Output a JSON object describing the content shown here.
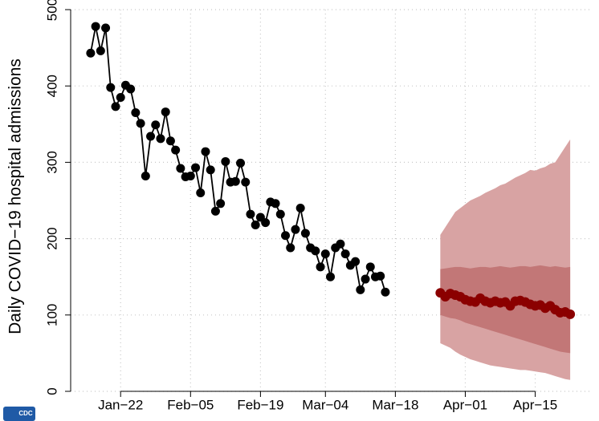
{
  "chart_data": {
    "type": "line",
    "y_label": "Daily COVID−19 hospital admissions",
    "logo_text": "CDC",
    "xlim": [
      "Jan-12",
      "Apr-26"
    ],
    "ylim": [
      0,
      500
    ],
    "yticks": [
      0,
      100,
      200,
      300,
      400,
      500
    ],
    "xticks": [
      {
        "value": "Jan-22",
        "label": "Jan−22"
      },
      {
        "value": "Feb-05",
        "label": "Feb−05"
      },
      {
        "value": "Feb-19",
        "label": "Feb−19"
      },
      {
        "value": "Mar-04",
        "label": "Mar−04"
      },
      {
        "value": "Mar-18",
        "label": "Mar−18"
      },
      {
        "value": "Apr-01",
        "label": "Apr−01"
      },
      {
        "value": "Apr-15",
        "label": "Apr−15"
      }
    ],
    "grid": true,
    "observed": {
      "color": "#000000",
      "start": "Jan-16",
      "values": [
        443,
        478,
        446,
        476,
        398,
        373,
        385,
        401,
        396,
        365,
        351,
        282,
        334,
        349,
        331,
        366,
        328,
        316,
        292,
        281,
        282,
        293,
        260,
        314,
        290,
        236,
        246,
        301,
        274,
        275,
        299,
        274,
        232,
        218,
        228,
        221,
        248,
        246,
        232,
        204,
        188,
        212,
        240,
        207,
        188,
        184,
        163,
        180,
        150,
        188,
        193,
        180,
        165,
        170,
        133,
        147,
        163,
        150,
        151,
        130
      ]
    },
    "forecast": {
      "color": "#8b0000",
      "start": "Mar-27",
      "values": [
        129,
        124,
        128,
        126,
        124,
        120,
        118,
        117,
        122,
        118,
        116,
        118,
        116,
        117,
        112,
        118,
        119,
        117,
        114,
        112,
        113,
        109,
        112,
        107,
        103,
        104,
        101
      ],
      "outer_band": {
        "color": "#d8a3a3",
        "upper": [
          205,
          215,
          225,
          235,
          240,
          245,
          250,
          253,
          256,
          260,
          263,
          266,
          270,
          272,
          276,
          280,
          283,
          286,
          290,
          289,
          292,
          294,
          298,
          300,
          310,
          320,
          330
        ],
        "lower": [
          63,
          60,
          57,
          52,
          48,
          45,
          42,
          40,
          38,
          36,
          34,
          33,
          32,
          31,
          30,
          29,
          28,
          28,
          27,
          26,
          25,
          24,
          22,
          20,
          18,
          16,
          15
        ]
      },
      "inner_band": {
        "color": "#c27777",
        "upper": [
          160,
          161,
          162,
          163,
          163,
          162,
          161,
          162,
          163,
          163,
          162,
          163,
          164,
          163,
          162,
          163,
          164,
          164,
          163,
          164,
          165,
          164,
          163,
          164,
          163,
          162,
          163
        ],
        "lower": [
          100,
          98,
          96,
          95,
          93,
          90,
          88,
          86,
          84,
          82,
          80,
          78,
          76,
          74,
          72,
          70,
          68,
          66,
          64,
          62,
          60,
          58,
          56,
          54,
          52,
          51,
          50
        ]
      }
    }
  }
}
